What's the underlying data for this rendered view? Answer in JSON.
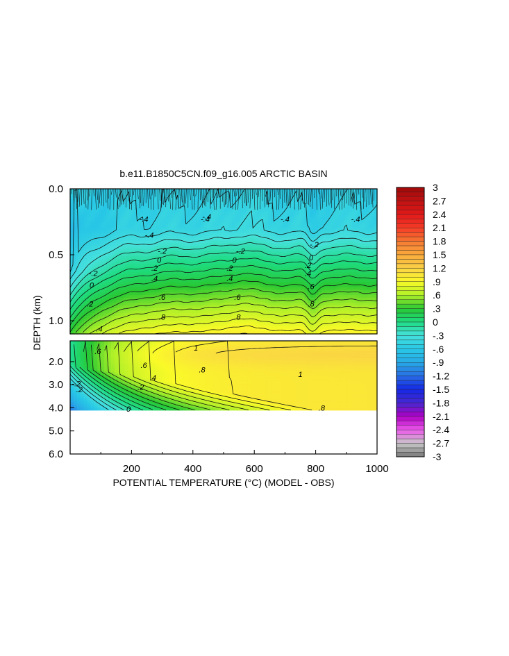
{
  "chart_data": {
    "type": "heatmap",
    "title": "b.e11.B1850C5CN.f09_g16.005 ARCTIC BASIN",
    "xlabel": "POTENTIAL TEMPERATURE (°C) (MODEL - OBS)",
    "ylabel": "DEPTH (km)",
    "x_tick_labels": [
      "200",
      "400",
      "600",
      "800",
      "1000"
    ],
    "x_ticks": [
      200,
      400,
      600,
      800,
      1000
    ],
    "xlim": [
      0,
      1000
    ],
    "upper_panel": {
      "ylim": [
        0.0,
        1.1
      ],
      "y_tick_labels": [
        "0.0",
        "0.5",
        "1.0"
      ],
      "y_ticks": [
        0.0,
        0.5,
        1.0
      ],
      "contour_labels": [
        {
          "text": "-.4",
          "x": 240,
          "y": 0.23
        },
        {
          "text": "-.4",
          "x": 440,
          "y": 0.23
        },
        {
          "text": "-.4",
          "x": 700,
          "y": 0.23
        },
        {
          "text": "-.4",
          "x": 930,
          "y": 0.23
        },
        {
          "text": "-.4",
          "x": 258,
          "y": 0.35
        },
        {
          "text": "-.4",
          "x": 445,
          "y": 0.21
        },
        {
          "text": "-.2",
          "x": 300,
          "y": 0.47
        },
        {
          "text": "-.2",
          "x": 555,
          "y": 0.47
        },
        {
          "text": "-.2",
          "x": 795,
          "y": 0.42
        },
        {
          "text": "0",
          "x": 290,
          "y": 0.54
        },
        {
          "text": "0",
          "x": 535,
          "y": 0.54
        },
        {
          "text": "0",
          "x": 785,
          "y": 0.52
        },
        {
          "text": "-.2",
          "x": 75,
          "y": 0.64
        },
        {
          "text": "0",
          "x": 70,
          "y": 0.73
        },
        {
          "text": ".2",
          "x": 275,
          "y": 0.6
        },
        {
          "text": ".2",
          "x": 520,
          "y": 0.6
        },
        {
          "text": ".2",
          "x": 775,
          "y": 0.58
        },
        {
          "text": ".4",
          "x": 275,
          "y": 0.68
        },
        {
          "text": ".4",
          "x": 520,
          "y": 0.68
        },
        {
          "text": ".4",
          "x": 775,
          "y": 0.64
        },
        {
          "text": ".2",
          "x": 65,
          "y": 0.87
        },
        {
          "text": ".6",
          "x": 300,
          "y": 0.82
        },
        {
          "text": ".6",
          "x": 545,
          "y": 0.82
        },
        {
          "text": ".6",
          "x": 785,
          "y": 0.74
        },
        {
          "text": ".8",
          "x": 300,
          "y": 0.97
        },
        {
          "text": ".8",
          "x": 545,
          "y": 0.97
        },
        {
          "text": ".8",
          "x": 785,
          "y": 0.87
        },
        {
          "text": ".4",
          "x": 95,
          "y": 1.06
        }
      ]
    },
    "lower_panel": {
      "ylim": [
        1.1,
        6.0
      ],
      "data_extent_bottom": 4.1,
      "y_tick_labels": [
        "2.0",
        "3.0",
        "4.0",
        "5.0",
        "6.0"
      ],
      "y_ticks": [
        2.0,
        3.0,
        4.0,
        5.0,
        6.0
      ],
      "contour_labels": [
        {
          "text": "1",
          "x": 410,
          "y": 1.4
        },
        {
          "text": "1",
          "x": 750,
          "y": 2.55
        },
        {
          "text": ".8",
          "x": 430,
          "y": 2.35
        },
        {
          "text": ".6",
          "x": 240,
          "y": 2.15
        },
        {
          "text": ".4",
          "x": 270,
          "y": 2.7
        },
        {
          "text": ".2",
          "x": 230,
          "y": 3.1
        },
        {
          "text": "0",
          "x": 190,
          "y": 4.05
        },
        {
          "text": ".8",
          "x": 820,
          "y": 4.0
        },
        {
          "text": ".6",
          "x": 90,
          "y": 1.55
        },
        {
          "text": "-.2",
          "x": 20,
          "y": 2.95
        },
        {
          "text": ".2",
          "x": 30,
          "y": 3.2
        }
      ]
    },
    "colorbar": {
      "range": [
        -3,
        3
      ],
      "label_values": [
        3,
        2.7,
        2.4,
        2.1,
        1.8,
        1.5,
        1.2,
        0.9,
        0.6,
        0.3,
        0,
        -0.3,
        -0.6,
        -0.9,
        -1.2,
        -1.5,
        -1.8,
        -2.1,
        -2.4,
        -2.7,
        -3
      ],
      "labels": [
        "3",
        "2.7",
        "2.4",
        "2.1",
        "1.8",
        "1.5",
        "1.2",
        ".9",
        ".6",
        ".3",
        "0",
        "-.3",
        "-.6",
        "-.9",
        "-1.2",
        "-1.5",
        "-1.8",
        "-2.1",
        "-2.4",
        "-2.7",
        "-3"
      ]
    }
  }
}
